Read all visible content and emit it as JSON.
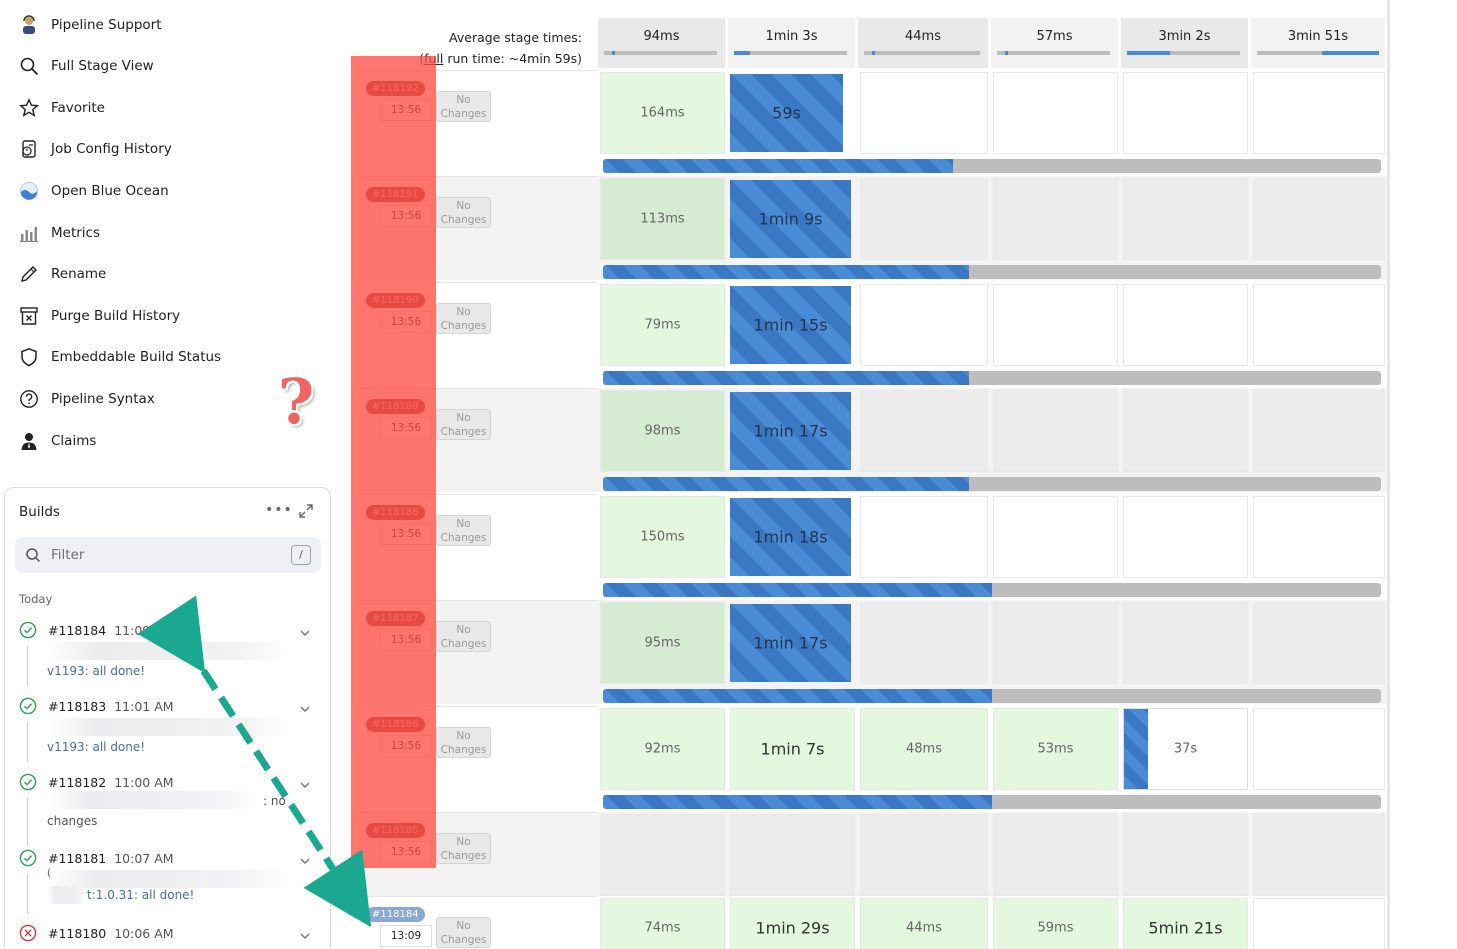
{
  "sidebar": {
    "items": [
      {
        "label": "Pipeline Support",
        "icon": "support-agent-icon"
      },
      {
        "label": "Full Stage View",
        "icon": "search-icon"
      },
      {
        "label": "Favorite",
        "icon": "star-icon"
      },
      {
        "label": "Job Config History",
        "icon": "config-history-icon"
      },
      {
        "label": "Open Blue Ocean",
        "icon": "blue-ocean-icon"
      },
      {
        "label": "Metrics",
        "icon": "metrics-icon"
      },
      {
        "label": "Rename",
        "icon": "pencil-icon"
      },
      {
        "label": "Purge Build History",
        "icon": "purge-icon"
      },
      {
        "label": "Embeddable Build Status",
        "icon": "shield-icon"
      },
      {
        "label": "Pipeline Syntax",
        "icon": "help-circle-icon"
      },
      {
        "label": "Claims",
        "icon": "claims-user-icon"
      }
    ]
  },
  "annotation": {
    "question_mark": "?"
  },
  "builds_panel": {
    "title": "Builds",
    "more": "•••",
    "filter_placeholder": "Filter",
    "filter_shortcut": "/",
    "section": "Today",
    "builds": [
      {
        "number": "#118184",
        "time": "11:09 AM",
        "status": "success",
        "desc": "v1193: all done!"
      },
      {
        "number": "#118183",
        "time": "11:01 AM",
        "status": "success",
        "desc": "v1193: all done!"
      },
      {
        "number": "#118182",
        "time": "11:00 AM",
        "status": "success",
        "desc_tail": ": no",
        "desc2": "changes"
      },
      {
        "number": "#118181",
        "time": "10:07 AM",
        "status": "success",
        "desc_prefix": "(",
        "desc": "t:1.0.31: all done!"
      },
      {
        "number": "#118180",
        "time": "10:06 AM",
        "status": "failed"
      }
    ]
  },
  "stage_view": {
    "avg_label": "Average stage times:",
    "full_run_prefix": "(",
    "full_run_link": "full",
    "full_run_rest": " run time: ~4min 59s)",
    "averages": [
      {
        "value": "94ms",
        "fill": 0.02
      },
      {
        "value": "1min 3s",
        "fill": 0.14
      },
      {
        "value": "44ms",
        "fill": 0.02
      },
      {
        "value": "57ms",
        "fill": 0.02
      },
      {
        "value": "3min 2s",
        "fill": 0.37
      },
      {
        "value": "3min 51s",
        "fill": 0.47
      }
    ],
    "no_changes": "No\nChanges",
    "runs": [
      {
        "badge": "#118192",
        "time": "13:56",
        "stages": [
          "164ms",
          "59s"
        ],
        "progress": 0.45
      },
      {
        "badge": "#118191",
        "time": "13:56",
        "stages": [
          "113ms",
          "1min 9s"
        ],
        "progress": 0.47
      },
      {
        "badge": "#118190",
        "time": "13:56",
        "stages": [
          "79ms",
          "1min 15s"
        ],
        "progress": 0.47
      },
      {
        "badge": "#118189",
        "time": "13:56",
        "stages": [
          "98ms",
          "1min 17s"
        ],
        "progress": 0.47
      },
      {
        "badge": "#118188",
        "time": "13:56",
        "stages": [
          "150ms",
          "1min 18s"
        ],
        "progress": 0.5
      },
      {
        "badge": "#118187",
        "time": "13:56",
        "stages": [
          "95ms",
          "1min 17s"
        ],
        "progress": 0.5
      },
      {
        "badge": "#118186",
        "time": "13:56",
        "stages": [
          "92ms",
          "1min 7s",
          "48ms",
          "53ms",
          "37s"
        ],
        "progress": 0.5
      },
      {
        "badge": "#118185",
        "time": "13:56",
        "stages": []
      },
      {
        "badge": "#118184",
        "time": "13:09",
        "stages": [
          "74ms",
          "1min 29s",
          "44ms",
          "59ms",
          "5min 21s"
        ]
      }
    ]
  },
  "colors": {
    "accent": "#4a8bd6",
    "success": "#2e9e55",
    "failed": "#d33a3a",
    "overlay": "#ff5046",
    "arrow": "#1aa890"
  }
}
